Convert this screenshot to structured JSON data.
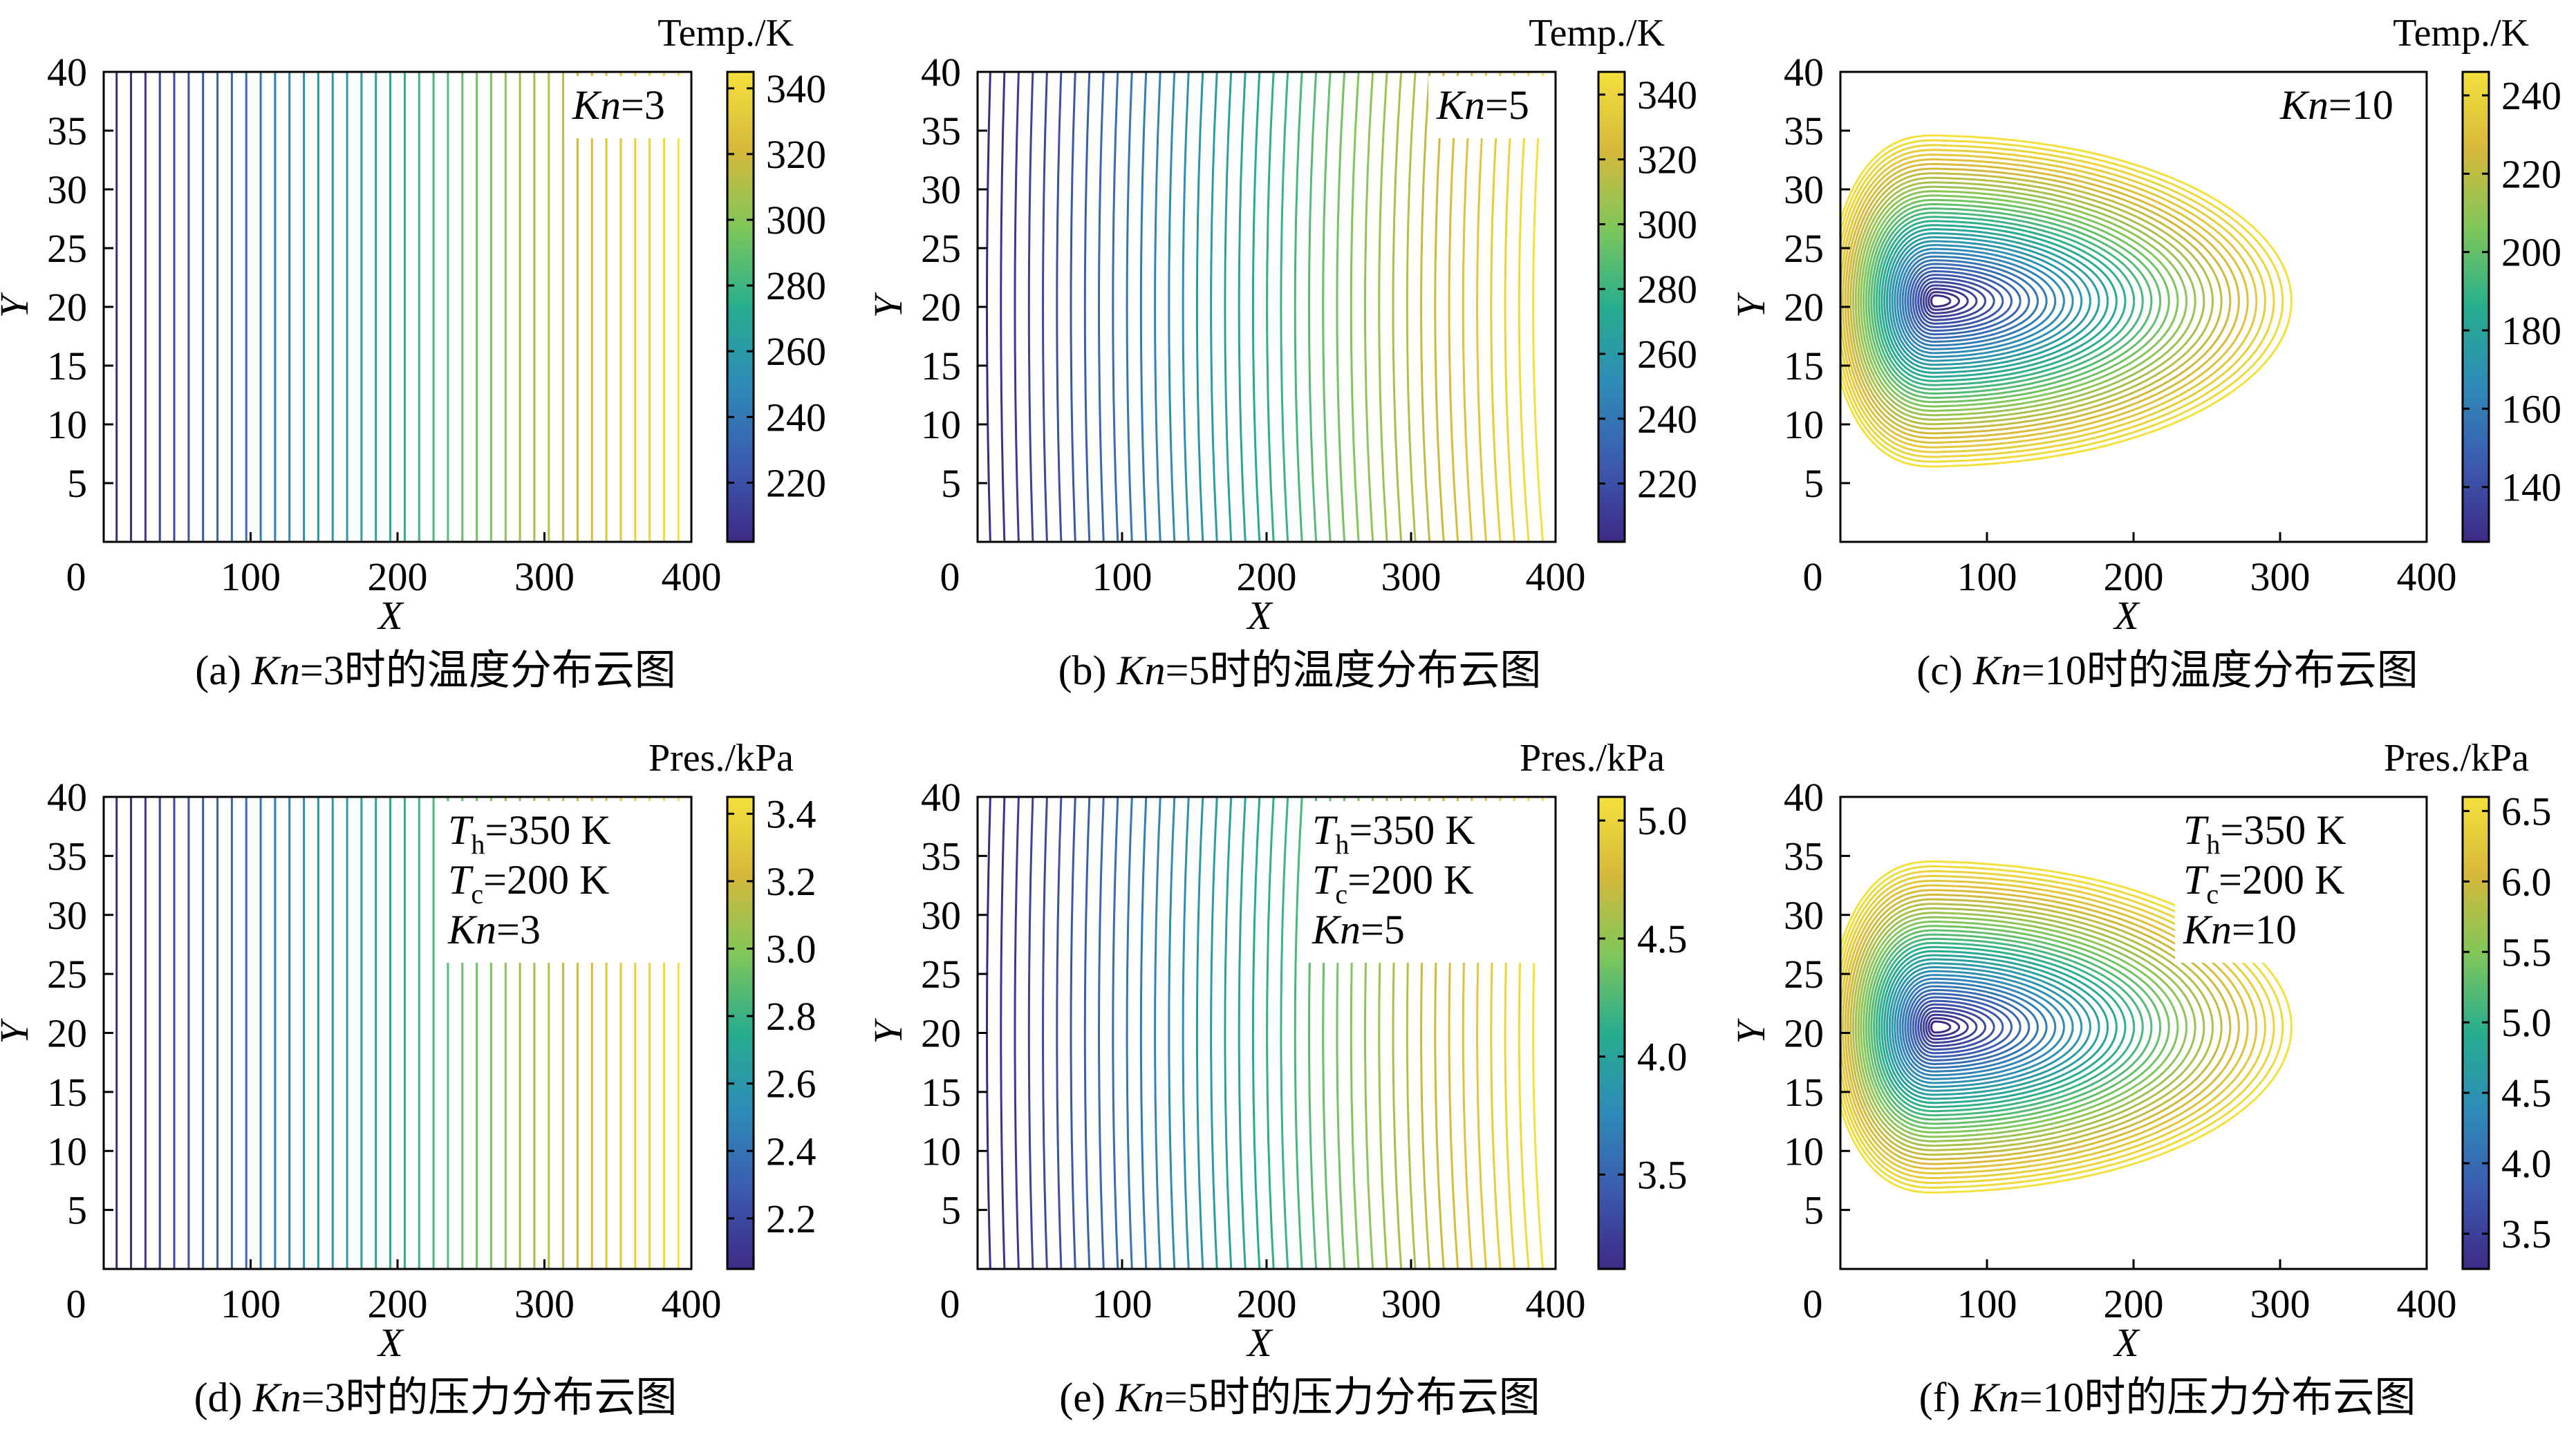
{
  "colormap": [
    "#3e2a86",
    "#3b5bb0",
    "#2e8bb8",
    "#26ad8e",
    "#7fc75a",
    "#d6b83a",
    "#f4e03c"
  ],
  "chart_data": [
    {
      "type": "contour",
      "panel": "a",
      "quantity": "temperature",
      "xlabel": "X",
      "ylabel": "Y",
      "xlim": [
        0,
        400
      ],
      "ylim": [
        0,
        40
      ],
      "xticks": [
        "0",
        "100",
        "200",
        "300",
        "400"
      ],
      "yticks": [
        "5",
        "10",
        "15",
        "20",
        "25",
        "30",
        "35",
        "40"
      ],
      "colorbar_title": "Temp./K",
      "colorbar_range": [
        202,
        345
      ],
      "colorbar_ticks": [
        "220",
        "240",
        "260",
        "280",
        "300",
        "320",
        "340"
      ],
      "colorbar_tick_values": [
        220,
        240,
        260,
        280,
        300,
        320,
        340
      ],
      "annotation": [
        {
          "italic": "Kn",
          "text": "=3"
        }
      ],
      "caption": {
        "label": "(a) ",
        "italic": "Kn",
        "text": "=3时的温度分布云图"
      },
      "pattern": "vertical",
      "bend": 0,
      "levels": 40
    },
    {
      "type": "contour",
      "panel": "b",
      "quantity": "temperature",
      "xlabel": "X",
      "ylabel": "Y",
      "xlim": [
        0,
        400
      ],
      "ylim": [
        0,
        40
      ],
      "xticks": [
        "0",
        "100",
        "200",
        "300",
        "400"
      ],
      "yticks": [
        "5",
        "10",
        "15",
        "20",
        "25",
        "30",
        "35",
        "40"
      ],
      "colorbar_title": "Temp./K",
      "colorbar_range": [
        202,
        347
      ],
      "colorbar_ticks": [
        "220",
        "240",
        "260",
        "280",
        "300",
        "320",
        "340"
      ],
      "colorbar_tick_values": [
        220,
        240,
        260,
        280,
        300,
        320,
        340
      ],
      "annotation": [
        {
          "italic": "Kn",
          "text": "=5"
        }
      ],
      "caption": {
        "label": "(b) ",
        "italic": "Kn",
        "text": "=5时的温度分布云图"
      },
      "pattern": "curved",
      "bend": 14,
      "levels": 40
    },
    {
      "type": "contour",
      "panel": "c",
      "quantity": "temperature",
      "xlabel": "X",
      "ylabel": "Y",
      "xlim": [
        0,
        400
      ],
      "ylim": [
        0,
        40
      ],
      "xticks": [
        "0",
        "100",
        "200",
        "300",
        "400"
      ],
      "yticks": [
        "5",
        "10",
        "15",
        "20",
        "25",
        "30",
        "35",
        "40"
      ],
      "colorbar_title": "Temp./K",
      "colorbar_range": [
        126,
        246
      ],
      "colorbar_ticks": [
        "140",
        "160",
        "180",
        "200",
        "220",
        "240"
      ],
      "colorbar_tick_values": [
        140,
        160,
        180,
        200,
        220,
        240
      ],
      "annotation": [
        {
          "italic": "Kn",
          "text": "=10"
        }
      ],
      "caption": {
        "label": "(c) ",
        "italic": "Kn",
        "text": "=10时的温度分布云图"
      },
      "pattern": "closed",
      "levels": 40
    },
    {
      "type": "contour",
      "panel": "d",
      "quantity": "pressure",
      "xlabel": "X",
      "ylabel": "Y",
      "xlim": [
        0,
        400
      ],
      "ylim": [
        0,
        40
      ],
      "xticks": [
        "0",
        "100",
        "200",
        "300",
        "400"
      ],
      "yticks": [
        "5",
        "10",
        "15",
        "20",
        "25",
        "30",
        "35",
        "40"
      ],
      "colorbar_title": "Pres./kPa",
      "colorbar_range": [
        2.05,
        3.45
      ],
      "colorbar_ticks": [
        "2.2",
        "2.4",
        "2.6",
        "2.8",
        "3.0",
        "3.2",
        "3.4"
      ],
      "colorbar_tick_values": [
        2.2,
        2.4,
        2.6,
        2.8,
        3.0,
        3.2,
        3.4
      ],
      "annotation": [
        {
          "italic": "T",
          "sub": "h",
          "text": "=350 K"
        },
        {
          "italic": "T",
          "sub": "c",
          "text": "=200 K"
        },
        {
          "italic": "Kn",
          "text": "=3"
        }
      ],
      "caption": {
        "label": "(d) ",
        "italic": "Kn",
        "text": "=3时的压力分布云图"
      },
      "pattern": "vertical",
      "bend": 0,
      "levels": 40
    },
    {
      "type": "contour",
      "panel": "e",
      "quantity": "pressure",
      "xlabel": "X",
      "ylabel": "Y",
      "xlim": [
        0,
        400
      ],
      "ylim": [
        0,
        40
      ],
      "xticks": [
        "0",
        "100",
        "200",
        "300",
        "400"
      ],
      "yticks": [
        "5",
        "10",
        "15",
        "20",
        "25",
        "30",
        "35",
        "40"
      ],
      "colorbar_title": "Pres./kPa",
      "colorbar_range": [
        3.1,
        5.1
      ],
      "colorbar_ticks": [
        "3.5",
        "4.0",
        "4.5",
        "5.0"
      ],
      "colorbar_tick_values": [
        3.5,
        4.0,
        4.5,
        5.0
      ],
      "annotation": [
        {
          "italic": "T",
          "sub": "h",
          "text": "=350 K"
        },
        {
          "italic": "T",
          "sub": "c",
          "text": "=200 K"
        },
        {
          "italic": "Kn",
          "text": "=5"
        }
      ],
      "caption": {
        "label": "(e) ",
        "italic": "Kn",
        "text": "=5时的压力分布云图"
      },
      "pattern": "curved",
      "bend": 14,
      "levels": 40
    },
    {
      "type": "contour",
      "panel": "f",
      "quantity": "pressure",
      "xlabel": "X",
      "ylabel": "Y",
      "xlim": [
        0,
        400
      ],
      "ylim": [
        0,
        40
      ],
      "xticks": [
        "0",
        "100",
        "200",
        "300",
        "400"
      ],
      "yticks": [
        "5",
        "10",
        "15",
        "20",
        "25",
        "30",
        "35",
        "40"
      ],
      "colorbar_title": "Pres./kPa",
      "colorbar_range": [
        3.25,
        6.6
      ],
      "colorbar_ticks": [
        "3.5",
        "4.0",
        "4.5",
        "5.0",
        "5.5",
        "6.0",
        "6.5"
      ],
      "colorbar_tick_values": [
        3.5,
        4.0,
        4.5,
        5.0,
        5.5,
        6.0,
        6.5
      ],
      "annotation": [
        {
          "italic": "T",
          "sub": "h",
          "text": "=350 K"
        },
        {
          "italic": "T",
          "sub": "c",
          "text": "=200 K"
        },
        {
          "italic": "Kn",
          "text": "=10"
        }
      ],
      "caption": {
        "label": "(f) ",
        "italic": "Kn",
        "text": "=10时的压力分布云图"
      },
      "pattern": "closed",
      "levels": 40
    }
  ]
}
